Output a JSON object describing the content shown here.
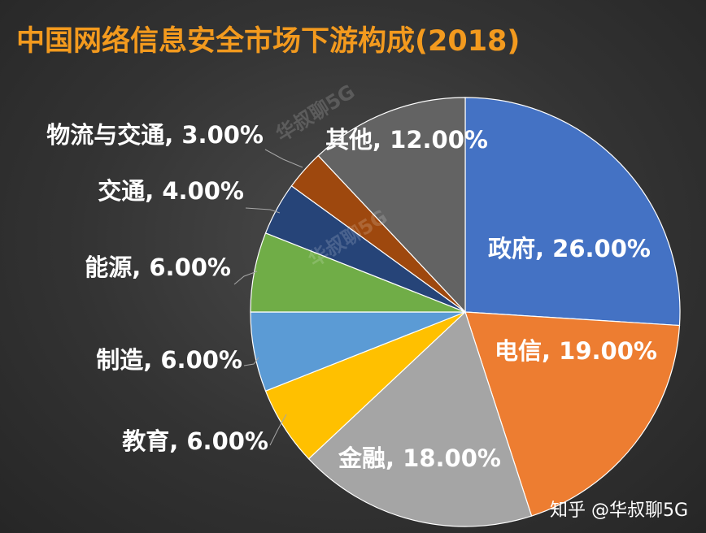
{
  "watermark": "华叔聊5G",
  "credit": "知乎 @华叔聊5G",
  "chart_data": {
    "type": "pie",
    "title": "中国网络信息安全市场下游构成(2018)",
    "slices": [
      {
        "label": "政府",
        "value": 26.0,
        "display": "政府, 26.00%",
        "color": "#4472c4"
      },
      {
        "label": "电信",
        "value": 19.0,
        "display": "电信, 19.00%",
        "color": "#ed7d31"
      },
      {
        "label": "金融",
        "value": 18.0,
        "display": "金融, 18.00%",
        "color": "#a5a5a5"
      },
      {
        "label": "教育",
        "value": 6.0,
        "display": "教育, 6.00%",
        "color": "#ffc000"
      },
      {
        "label": "制造",
        "value": 6.0,
        "display": "制造, 6.00%",
        "color": "#5b9bd5"
      },
      {
        "label": "能源",
        "value": 6.0,
        "display": "能源, 6.00%",
        "color": "#70ad47"
      },
      {
        "label": "交通",
        "value": 4.0,
        "display": "交通, 4.00%",
        "color": "#264478"
      },
      {
        "label": "物流与交通",
        "value": 3.0,
        "display": "物流与交通, 3.00%",
        "color": "#9e480e"
      },
      {
        "label": "其他",
        "value": 12.0,
        "display": "其他, 12.00%",
        "color": "#636363"
      }
    ]
  }
}
